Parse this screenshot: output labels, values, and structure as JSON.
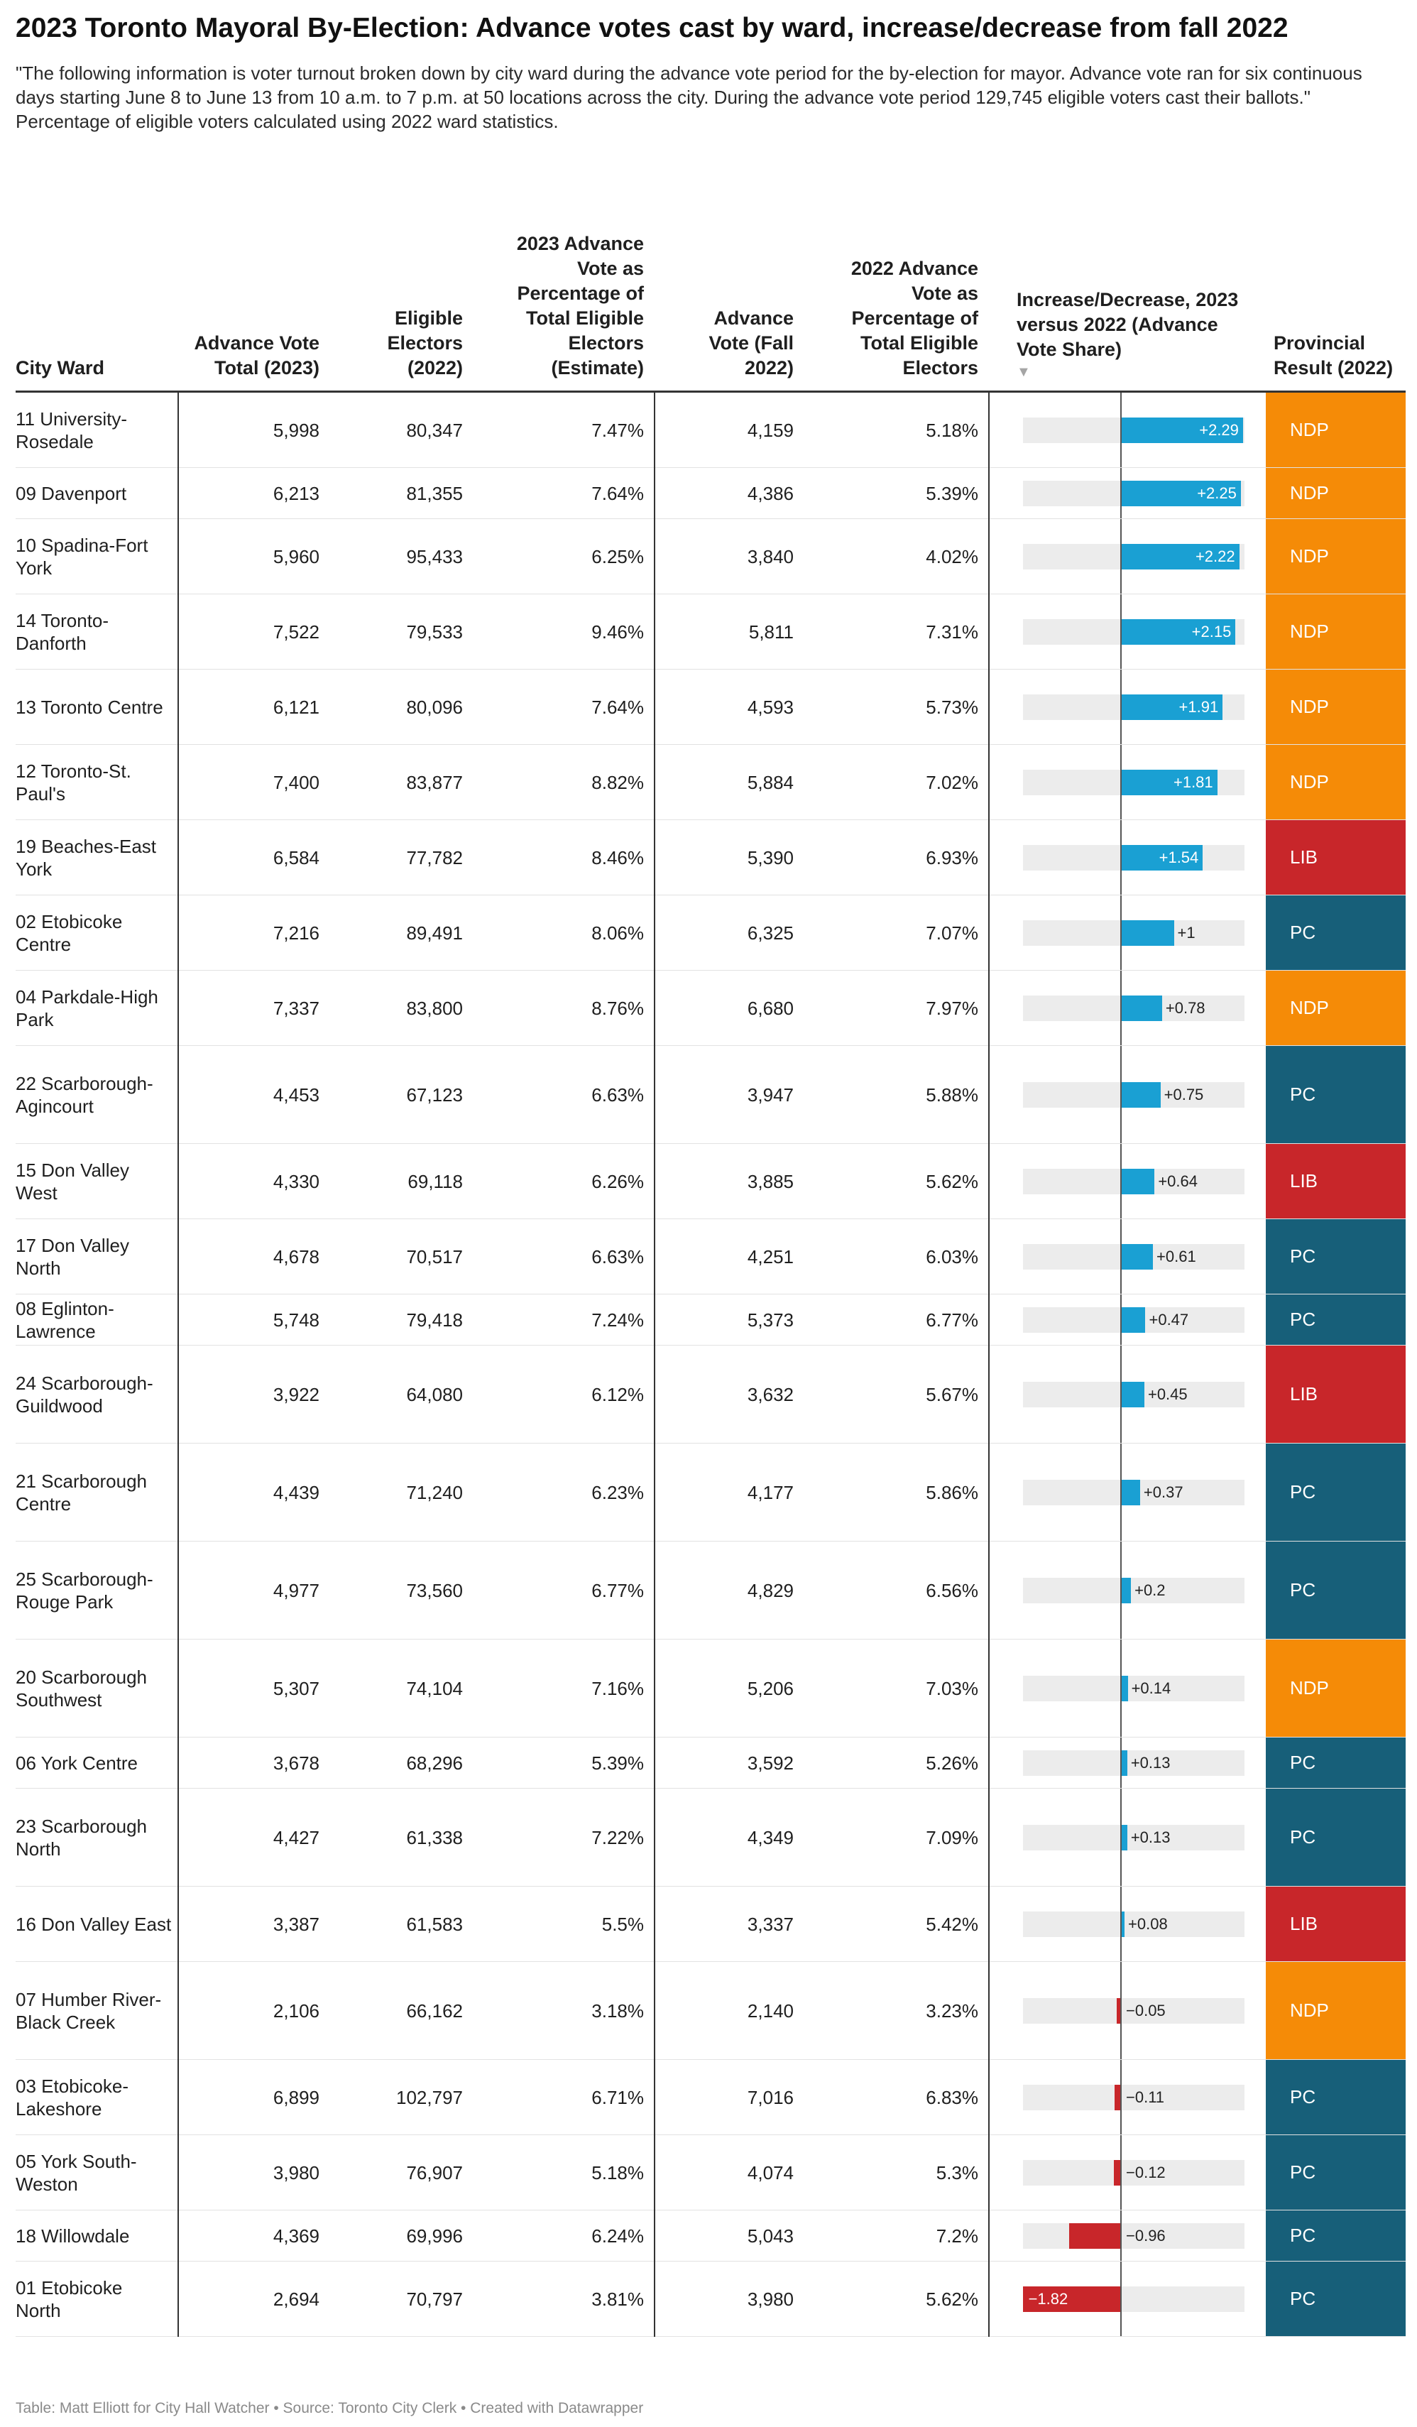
{
  "title": "2023 Toronto Mayoral By-Election: Advance votes cast by ward, increase/decrease from fall 2022",
  "description": "\"The following information is voter turnout broken down by city ward during the advance vote period for the by-election for mayor. Advance vote ran for six continuous days starting June 8 to June 13 from 10 a.m. to 7 p.m. at 50 locations across the city. During the advance vote period 129,745 eligible voters cast their ballots.\" Percentage of eligible voters calculated using 2022 ward statistics.",
  "columns": {
    "ward": "City Ward",
    "advance_2023": "Advance Vote Total (2023)",
    "eligible_2022": "Eligible Electors (2022)",
    "pct_2023": "2023 Advance Vote as Percentage of Total Eligible Electors (Estimate)",
    "advance_2022": "Advance Vote (Fall 2022)",
    "pct_2022": "2022 Advance Vote as Percentage of Total Eligible Electors",
    "change": "Increase/Decrease, 2023 versus 2022 (Advance Vote Share)",
    "provincial": "Provincial Result (2022)"
  },
  "sort_icon": "sort-descending-icon",
  "sort_glyph": "▼",
  "colors": {
    "positive": "#1aa0d3",
    "negative": "#c8262a",
    "NDP": "#f58b07",
    "LIB": "#c8262a",
    "PC": "#175f79"
  },
  "chart_data": {
    "type": "table",
    "bar_column": "change",
    "bar_range": [
      -1.82,
      2.29
    ],
    "rows": [
      {
        "ward": "11 University-Rosedale",
        "advance_2023": "5,998",
        "eligible_2022": "80,347",
        "pct_2023": "7.47%",
        "advance_2022": "4,159",
        "pct_2022": "5.18%",
        "change": 2.29,
        "change_label": "+2.29",
        "provincial": "NDP"
      },
      {
        "ward": "09 Davenport",
        "advance_2023": "6,213",
        "eligible_2022": "81,355",
        "pct_2023": "7.64%",
        "advance_2022": "4,386",
        "pct_2022": "5.39%",
        "change": 2.25,
        "change_label": "+2.25",
        "provincial": "NDP"
      },
      {
        "ward": "10 Spadina-Fort York",
        "advance_2023": "5,960",
        "eligible_2022": "95,433",
        "pct_2023": "6.25%",
        "advance_2022": "3,840",
        "pct_2022": "4.02%",
        "change": 2.22,
        "change_label": "+2.22",
        "provincial": "NDP"
      },
      {
        "ward": "14 Toronto-Danforth",
        "advance_2023": "7,522",
        "eligible_2022": "79,533",
        "pct_2023": "9.46%",
        "advance_2022": "5,811",
        "pct_2022": "7.31%",
        "change": 2.15,
        "change_label": "+2.15",
        "provincial": "NDP"
      },
      {
        "ward": "13 Toronto Centre",
        "advance_2023": "6,121",
        "eligible_2022": "80,096",
        "pct_2023": "7.64%",
        "advance_2022": "4,593",
        "pct_2022": "5.73%",
        "change": 1.91,
        "change_label": "+1.91",
        "provincial": "NDP"
      },
      {
        "ward": "12 Toronto-St. Paul's",
        "advance_2023": "7,400",
        "eligible_2022": "83,877",
        "pct_2023": "8.82%",
        "advance_2022": "5,884",
        "pct_2022": "7.02%",
        "change": 1.81,
        "change_label": "+1.81",
        "provincial": "NDP"
      },
      {
        "ward": "19 Beaches-East York",
        "advance_2023": "6,584",
        "eligible_2022": "77,782",
        "pct_2023": "8.46%",
        "advance_2022": "5,390",
        "pct_2022": "6.93%",
        "change": 1.54,
        "change_label": "+1.54",
        "provincial": "LIB"
      },
      {
        "ward": "02 Etobicoke Centre",
        "advance_2023": "7,216",
        "eligible_2022": "89,491",
        "pct_2023": "8.06%",
        "advance_2022": "6,325",
        "pct_2022": "7.07%",
        "change": 1.0,
        "change_label": "+1",
        "provincial": "PC"
      },
      {
        "ward": "04 Parkdale-High Park",
        "advance_2023": "7,337",
        "eligible_2022": "83,800",
        "pct_2023": "8.76%",
        "advance_2022": "6,680",
        "pct_2022": "7.97%",
        "change": 0.78,
        "change_label": "+0.78",
        "provincial": "NDP"
      },
      {
        "ward": "22 Scarborough-Agincourt",
        "advance_2023": "4,453",
        "eligible_2022": "67,123",
        "pct_2023": "6.63%",
        "advance_2022": "3,947",
        "pct_2022": "5.88%",
        "change": 0.75,
        "change_label": "+0.75",
        "provincial": "PC"
      },
      {
        "ward": "15 Don Valley West",
        "advance_2023": "4,330",
        "eligible_2022": "69,118",
        "pct_2023": "6.26%",
        "advance_2022": "3,885",
        "pct_2022": "5.62%",
        "change": 0.64,
        "change_label": "+0.64",
        "provincial": "LIB"
      },
      {
        "ward": "17 Don Valley North",
        "advance_2023": "4,678",
        "eligible_2022": "70,517",
        "pct_2023": "6.63%",
        "advance_2022": "4,251",
        "pct_2022": "6.03%",
        "change": 0.61,
        "change_label": "+0.61",
        "provincial": "PC"
      },
      {
        "ward": "08 Eglinton-Lawrence",
        "advance_2023": "5,748",
        "eligible_2022": "79,418",
        "pct_2023": "7.24%",
        "advance_2022": "5,373",
        "pct_2022": "6.77%",
        "change": 0.47,
        "change_label": "+0.47",
        "provincial": "PC"
      },
      {
        "ward": "24 Scarborough-Guildwood",
        "advance_2023": "3,922",
        "eligible_2022": "64,080",
        "pct_2023": "6.12%",
        "advance_2022": "3,632",
        "pct_2022": "5.67%",
        "change": 0.45,
        "change_label": "+0.45",
        "provincial": "LIB"
      },
      {
        "ward": "21 Scarborough Centre",
        "advance_2023": "4,439",
        "eligible_2022": "71,240",
        "pct_2023": "6.23%",
        "advance_2022": "4,177",
        "pct_2022": "5.86%",
        "change": 0.37,
        "change_label": "+0.37",
        "provincial": "PC"
      },
      {
        "ward": "25 Scarborough-Rouge Park",
        "advance_2023": "4,977",
        "eligible_2022": "73,560",
        "pct_2023": "6.77%",
        "advance_2022": "4,829",
        "pct_2022": "6.56%",
        "change": 0.2,
        "change_label": "+0.2",
        "provincial": "PC"
      },
      {
        "ward": "20 Scarborough Southwest",
        "advance_2023": "5,307",
        "eligible_2022": "74,104",
        "pct_2023": "7.16%",
        "advance_2022": "5,206",
        "pct_2022": "7.03%",
        "change": 0.14,
        "change_label": "+0.14",
        "provincial": "NDP"
      },
      {
        "ward": "06 York Centre",
        "advance_2023": "3,678",
        "eligible_2022": "68,296",
        "pct_2023": "5.39%",
        "advance_2022": "3,592",
        "pct_2022": "5.26%",
        "change": 0.13,
        "change_label": "+0.13",
        "provincial": "PC"
      },
      {
        "ward": "23 Scarborough North",
        "advance_2023": "4,427",
        "eligible_2022": "61,338",
        "pct_2023": "7.22%",
        "advance_2022": "4,349",
        "pct_2022": "7.09%",
        "change": 0.13,
        "change_label": "+0.13",
        "provincial": "PC"
      },
      {
        "ward": "16 Don Valley East",
        "advance_2023": "3,387",
        "eligible_2022": "61,583",
        "pct_2023": "5.5%",
        "advance_2022": "3,337",
        "pct_2022": "5.42%",
        "change": 0.08,
        "change_label": "+0.08",
        "provincial": "LIB"
      },
      {
        "ward": "07 Humber River-Black Creek",
        "advance_2023": "2,106",
        "eligible_2022": "66,162",
        "pct_2023": "3.18%",
        "advance_2022": "2,140",
        "pct_2022": "3.23%",
        "change": -0.05,
        "change_label": "−0.05",
        "provincial": "NDP"
      },
      {
        "ward": "03 Etobicoke-Lakeshore",
        "advance_2023": "6,899",
        "eligible_2022": "102,797",
        "pct_2023": "6.71%",
        "advance_2022": "7,016",
        "pct_2022": "6.83%",
        "change": -0.11,
        "change_label": "−0.11",
        "provincial": "PC"
      },
      {
        "ward": "05 York South-Weston",
        "advance_2023": "3,980",
        "eligible_2022": "76,907",
        "pct_2023": "5.18%",
        "advance_2022": "4,074",
        "pct_2022": "5.3%",
        "change": -0.12,
        "change_label": "−0.12",
        "provincial": "PC"
      },
      {
        "ward": "18 Willowdale",
        "advance_2023": "4,369",
        "eligible_2022": "69,996",
        "pct_2023": "6.24%",
        "advance_2022": "5,043",
        "pct_2022": "7.2%",
        "change": -0.96,
        "change_label": "−0.96",
        "provincial": "PC"
      },
      {
        "ward": "01 Etobicoke North",
        "advance_2023": "2,694",
        "eligible_2022": "70,797",
        "pct_2023": "3.81%",
        "advance_2022": "3,980",
        "pct_2022": "5.62%",
        "change": -1.82,
        "change_label": "−1.82",
        "provincial": "PC"
      }
    ]
  },
  "footer": "Table: Matt Elliott for City Hall Watcher • Source: Toronto City Clerk • Created with Datawrapper"
}
